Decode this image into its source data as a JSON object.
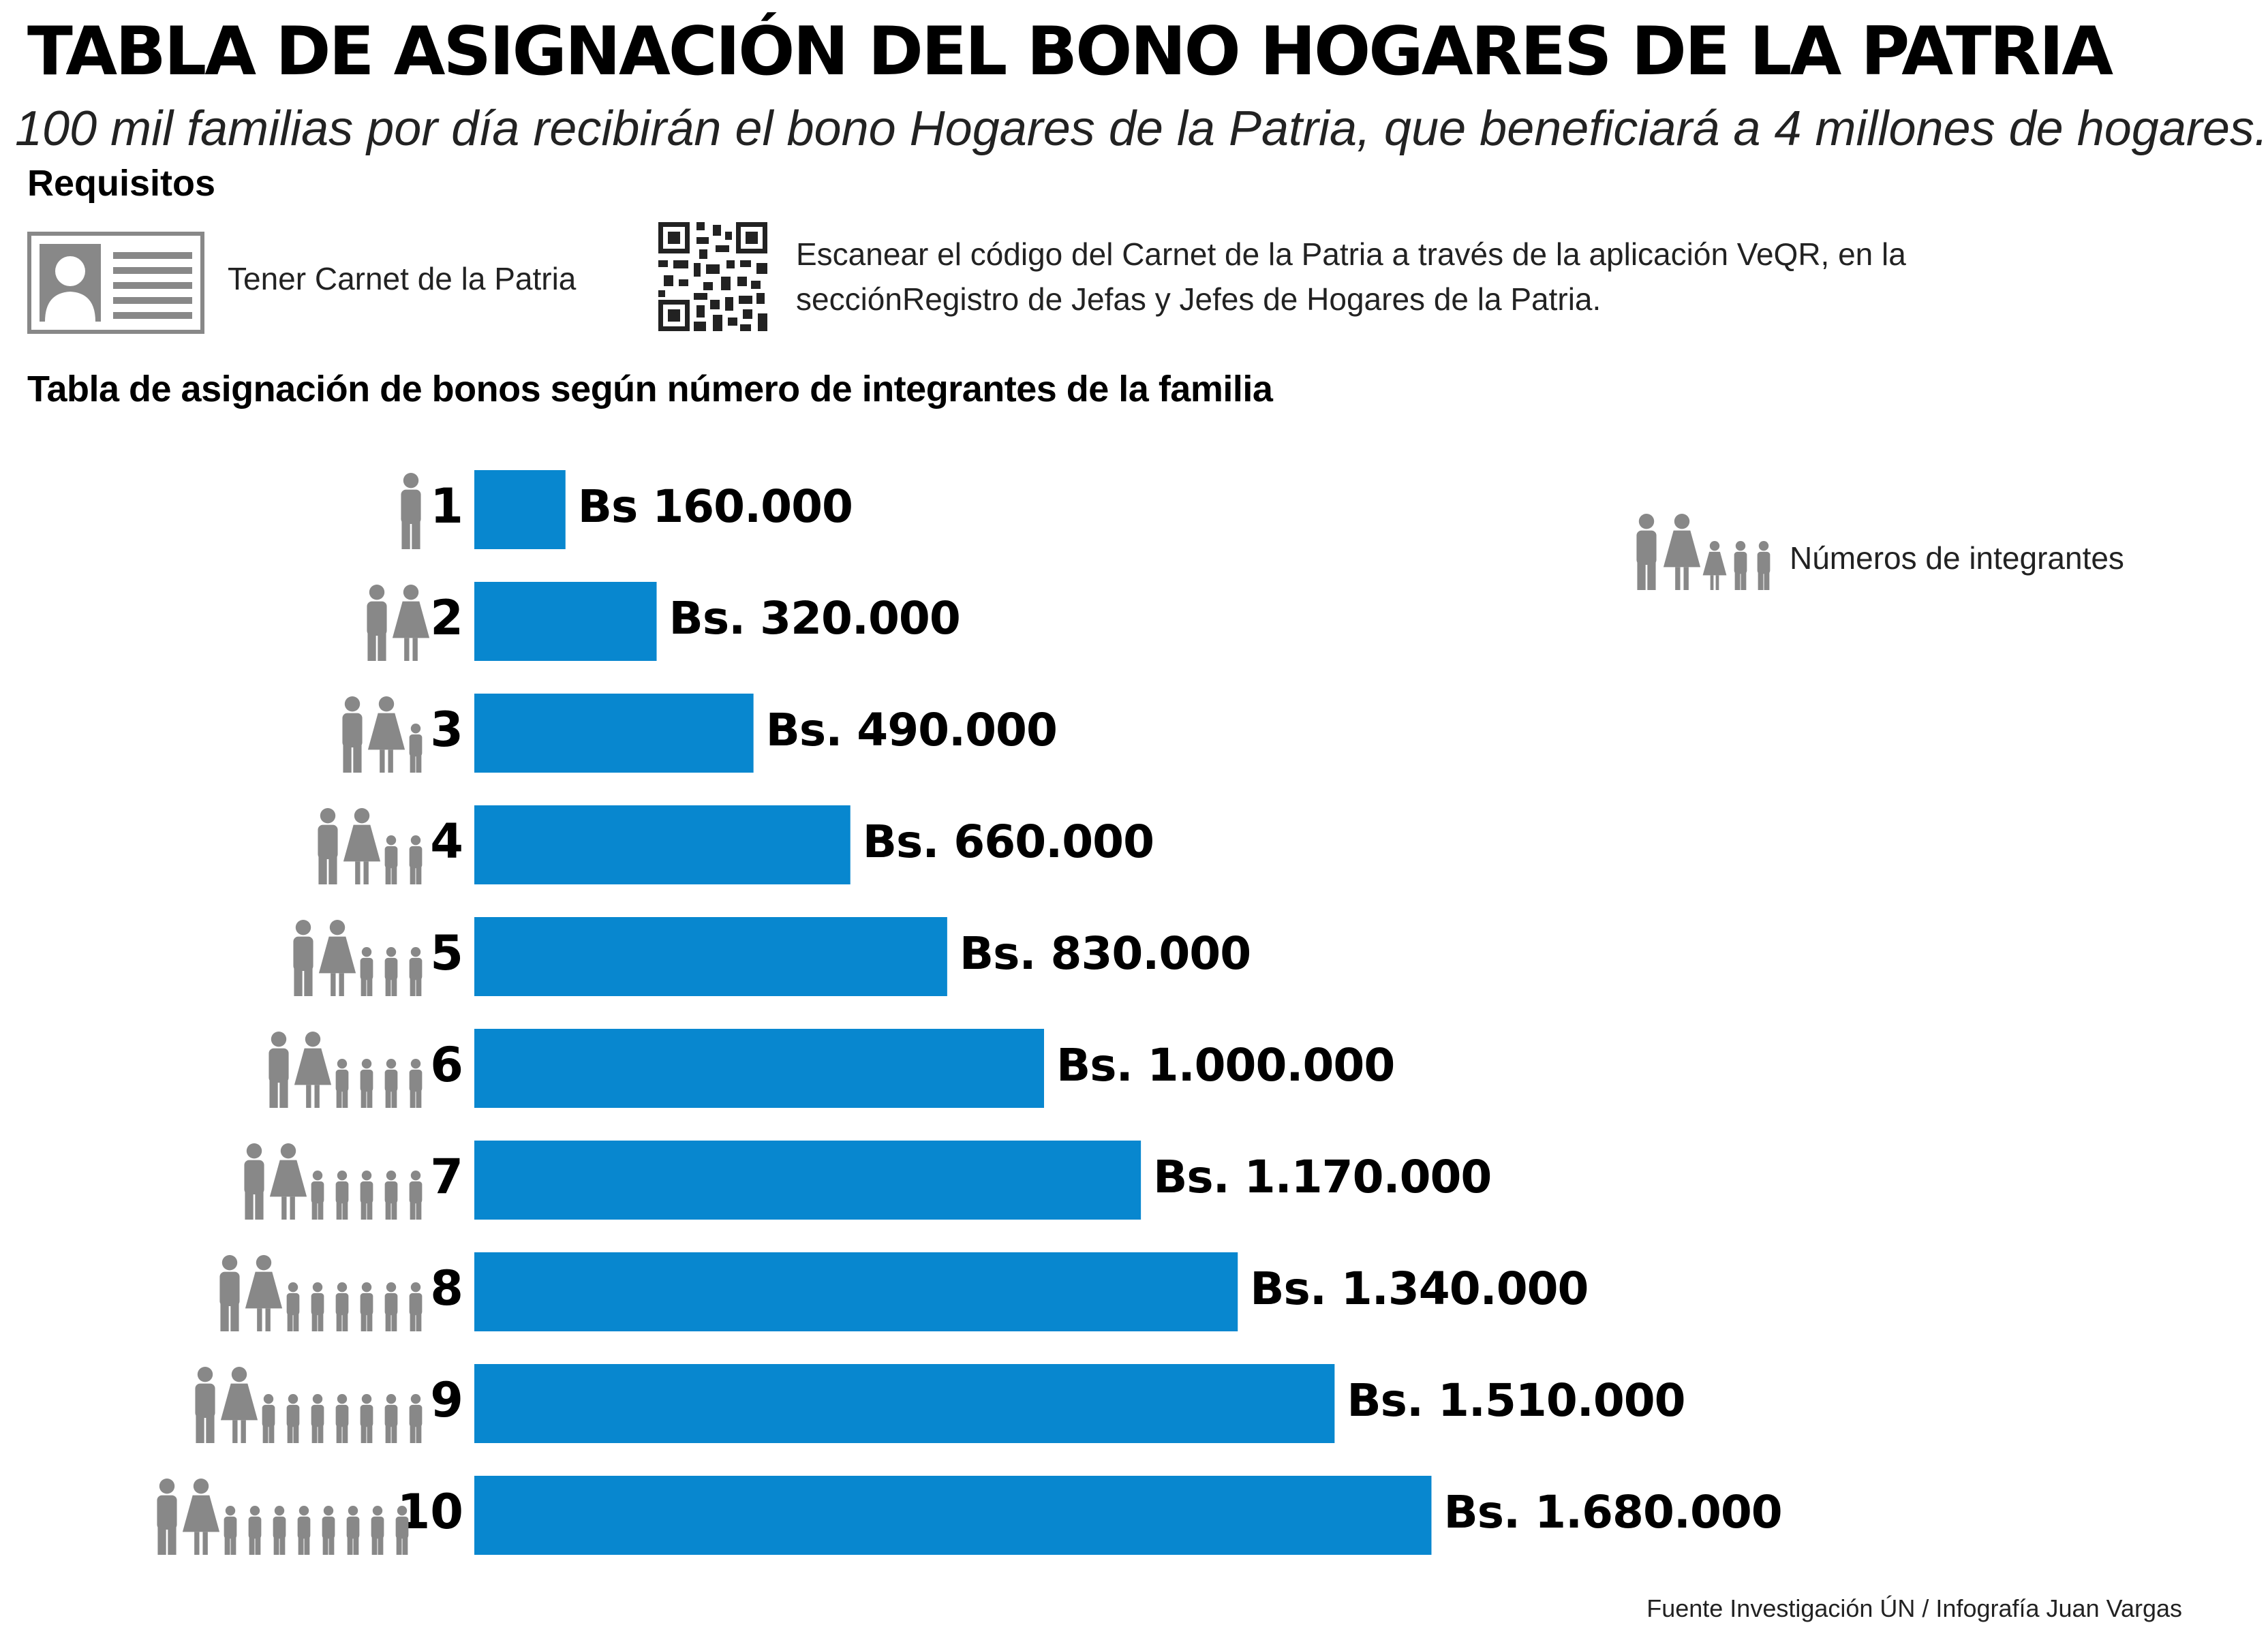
{
  "title": "TABLA DE ASIGNACIÓN DEL BONO HOGARES DE LA PATRIA",
  "subtitle": "100 mil familias por día recibirán el bono Hogares de la Patria, que beneficiará a 4 millones de hogares.",
  "requirements": {
    "heading": "Requisitos",
    "items": [
      {
        "icon": "id-card-icon",
        "text": "Tener Carnet de la Patria"
      },
      {
        "icon": "qr-code-icon",
        "text": "Escanear el código del Carnet de la Patria a través de la aplicación VeQR, en la secciónRegistro de Jefas y Jefes de Hogares de la Patria."
      }
    ]
  },
  "legend": {
    "icon": "family-icon",
    "label": "Números de integrantes"
  },
  "source": "Fuente Investigación ÚN / Infografía Juan Vargas",
  "colors": {
    "bar": "#0887cf",
    "person": "#888888",
    "text": "#000000"
  },
  "chart_data": {
    "type": "bar",
    "orientation": "horizontal",
    "title": "Tabla de asignación de bonos según número de integrantes de la familia",
    "categories": [
      "1",
      "2",
      "3",
      "4",
      "5",
      "6",
      "7",
      "8",
      "9",
      "10"
    ],
    "values": [
      160000,
      320000,
      490000,
      660000,
      830000,
      1000000,
      1170000,
      1340000,
      1510000,
      1680000
    ],
    "labels": [
      "Bs 160.000",
      "Bs. 320.000",
      "Bs. 490.000",
      "Bs. 660.000",
      "Bs. 830.000",
      "Bs. 1.000.000",
      "Bs. 1.170.000",
      "Bs. 1.340.000",
      "Bs. 1.510.000",
      "Bs. 1.680.000"
    ],
    "xlabel": "",
    "ylabel": "",
    "grid": false,
    "legend_position": "top-right"
  }
}
